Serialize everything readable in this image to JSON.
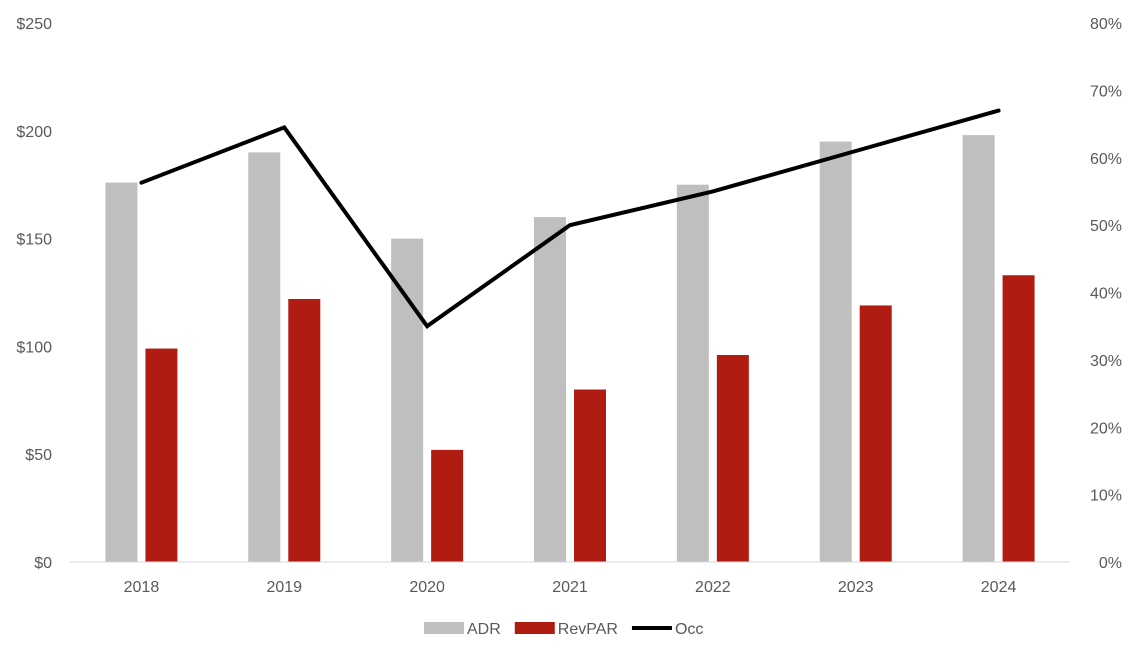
{
  "chart_data": {
    "type": "bar",
    "categories": [
      "2018",
      "2019",
      "2020",
      "2021",
      "2022",
      "2023",
      "2024"
    ],
    "series": [
      {
        "name": "ADR",
        "type": "bar",
        "axis": "left",
        "color": "#bfbfbf",
        "values": [
          176,
          190,
          150,
          160,
          175,
          195,
          198
        ]
      },
      {
        "name": "RevPAR",
        "type": "bar",
        "axis": "left",
        "color": "#b01c12",
        "values": [
          99,
          122,
          52,
          80,
          96,
          119,
          133
        ]
      },
      {
        "name": "Occ",
        "type": "line",
        "axis": "right",
        "color": "#000000",
        "values": [
          56.3,
          64.5,
          35.0,
          50.0,
          55.0,
          61.0,
          67.0
        ]
      }
    ],
    "y_left": {
      "min": 0,
      "max": 250,
      "step": 50,
      "tick_labels": [
        "$0",
        "$50",
        "$100",
        "$150",
        "$200",
        "$250"
      ]
    },
    "y_right": {
      "min": 0,
      "max": 80,
      "step": 10,
      "tick_labels": [
        "0%",
        "10%",
        "20%",
        "30%",
        "40%",
        "50%",
        "60%",
        "70%",
        "80%"
      ]
    },
    "legend": {
      "position": "bottom",
      "entries": [
        "ADR",
        "RevPAR",
        "Occ"
      ]
    },
    "grid": false
  }
}
